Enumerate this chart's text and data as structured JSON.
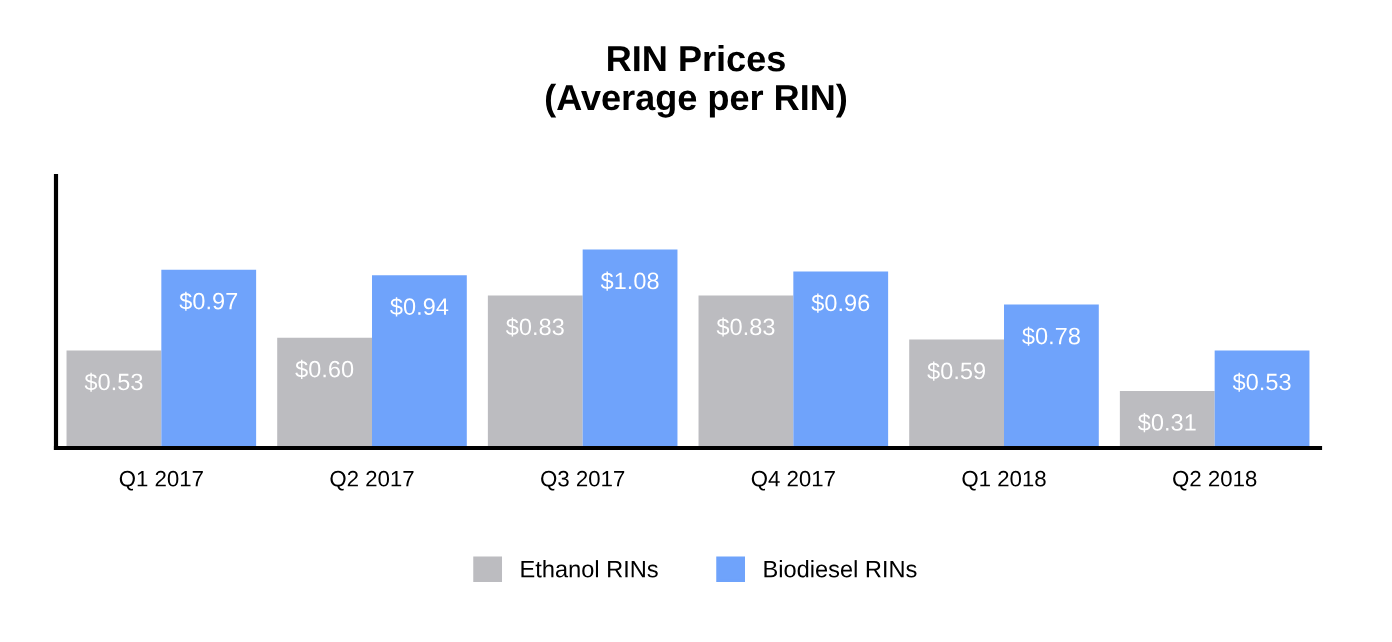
{
  "chart_data": {
    "type": "bar",
    "title": "RIN Prices\n(Average per RIN)",
    "categories": [
      "Q1 2017",
      "Q2 2017",
      "Q3 2017",
      "Q4 2017",
      "Q1 2018",
      "Q2 2018"
    ],
    "series": [
      {
        "name": "Ethanol RINs",
        "color": "#bcbcc0",
        "values": [
          0.53,
          0.6,
          0.83,
          0.83,
          0.59,
          0.31
        ],
        "value_labels": [
          "$0.53",
          "$0.60",
          "$0.83",
          "$0.83",
          "$0.59",
          "$0.31"
        ]
      },
      {
        "name": "Biodiesel RINs",
        "color": "#6fa3fb",
        "values": [
          0.97,
          0.94,
          1.08,
          0.96,
          0.78,
          0.53
        ],
        "value_labels": [
          "$0.97",
          "$0.94",
          "$1.08",
          "$0.96",
          "$0.78",
          "$0.53"
        ]
      }
    ],
    "tick_labels": "x",
    "legend": "bottom",
    "grid": false
  }
}
